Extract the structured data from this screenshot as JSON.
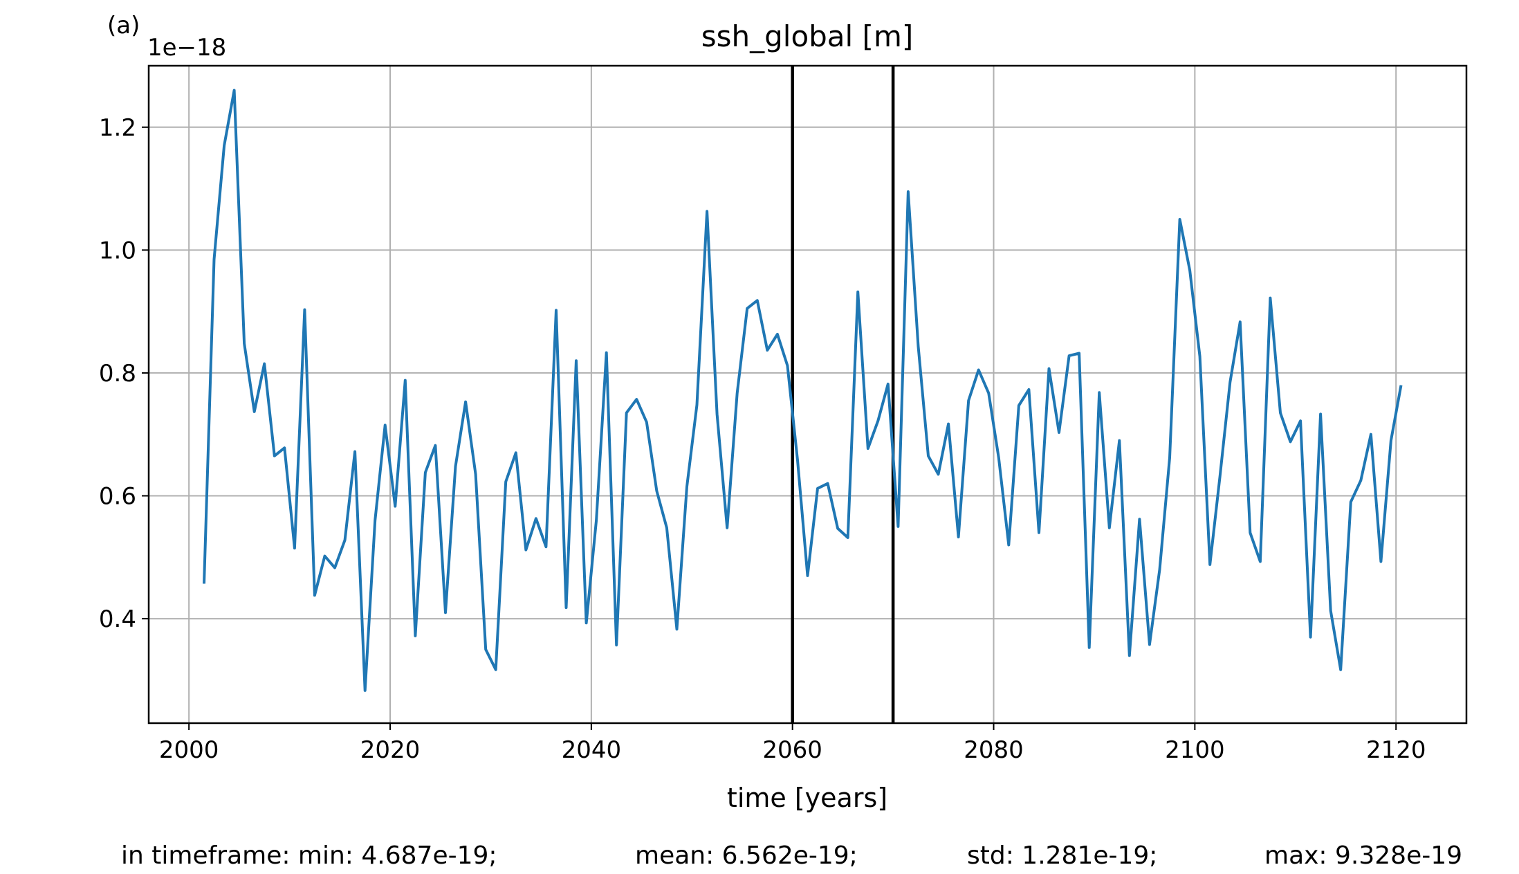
{
  "chart_data": {
    "type": "line",
    "panel_label": "(a)",
    "title": "ssh_global [m]",
    "xlabel": "time [years]",
    "ylabel": "",
    "y_offset_label": "1e−18",
    "y_scale": 1e-18,
    "xlim": [
      1996,
      2127
    ],
    "ylim": [
      0.23,
      1.3
    ],
    "x_ticks": [
      2000,
      2020,
      2040,
      2060,
      2080,
      2100,
      2120
    ],
    "x_tick_labels": [
      "2000",
      "2020",
      "2040",
      "2060",
      "2080",
      "2100",
      "2120"
    ],
    "y_ticks": [
      0.4,
      0.6,
      0.8,
      1.0,
      1.2
    ],
    "y_tick_labels": [
      "0.4",
      "0.6",
      "0.8",
      "1.0",
      "1.2"
    ],
    "grid": true,
    "series_color": "#1f77b4",
    "vertical_lines": [
      2060,
      2070
    ],
    "vertical_line_color": "#000000",
    "series": [
      {
        "x": [
          2001.5,
          2002.5,
          2003.5,
          2004.5,
          2005.5,
          2006.5,
          2007.5,
          2008.5,
          2009.5,
          2010.5,
          2011.5,
          2012.5,
          2013.5,
          2014.5,
          2015.5,
          2016.5,
          2017.5,
          2018.5,
          2019.5,
          2020.5,
          2021.5,
          2022.5,
          2023.5,
          2024.5,
          2025.5,
          2026.5,
          2027.5,
          2028.5,
          2029.5,
          2030.5,
          2031.5,
          2032.5,
          2033.5,
          2034.5,
          2035.5,
          2036.5,
          2037.5,
          2038.5,
          2039.5,
          2040.5,
          2041.5,
          2042.5,
          2043.5,
          2044.5,
          2045.5,
          2046.5,
          2047.5,
          2048.5,
          2049.5,
          2050.5,
          2051.5,
          2052.5,
          2053.5,
          2054.5,
          2055.5,
          2056.5,
          2057.5,
          2058.5,
          2059.5,
          2060.5,
          2061.5,
          2062.5,
          2063.5,
          2064.5,
          2065.5,
          2066.5,
          2067.5,
          2068.5,
          2069.5,
          2070.5,
          2071.5,
          2072.5,
          2073.5,
          2074.5,
          2075.5,
          2076.5,
          2077.5,
          2078.5,
          2079.5,
          2080.5,
          2081.5,
          2082.5,
          2083.5,
          2084.5,
          2085.5,
          2086.5,
          2087.5,
          2088.5,
          2089.5,
          2090.5,
          2091.5,
          2092.5,
          2093.5,
          2094.5,
          2095.5,
          2096.5,
          2097.5,
          2098.5,
          2099.5,
          2100.5,
          2101.5,
          2102.5,
          2103.5,
          2104.5,
          2105.5,
          2106.5,
          2107.5,
          2108.5,
          2109.5,
          2110.5,
          2111.5,
          2112.5,
          2113.5,
          2114.5,
          2115.5,
          2116.5,
          2117.5,
          2118.5,
          2119.5,
          2120.5
        ],
        "y": [
          0.457,
          0.985,
          1.17,
          1.26,
          0.848,
          0.737,
          0.815,
          0.665,
          0.678,
          0.515,
          0.903,
          0.438,
          0.502,
          0.483,
          0.528,
          0.672,
          0.283,
          0.56,
          0.715,
          0.583,
          0.788,
          0.372,
          0.638,
          0.682,
          0.41,
          0.648,
          0.753,
          0.635,
          0.35,
          0.317,
          0.623,
          0.67,
          0.512,
          0.563,
          0.517,
          0.902,
          0.418,
          0.82,
          0.393,
          0.56,
          0.833,
          0.357,
          0.735,
          0.757,
          0.72,
          0.608,
          0.548,
          0.383,
          0.615,
          0.748,
          1.063,
          0.733,
          0.548,
          0.767,
          0.905,
          0.918,
          0.837,
          0.863,
          0.812,
          0.658,
          0.47,
          0.612,
          0.62,
          0.547,
          0.532,
          0.932,
          0.677,
          0.722,
          0.782,
          0.55,
          1.095,
          0.843,
          0.665,
          0.635,
          0.717,
          0.533,
          0.755,
          0.805,
          0.767,
          0.662,
          0.52,
          0.747,
          0.773,
          0.54,
          0.807,
          0.703,
          0.828,
          0.832,
          0.353,
          0.768,
          0.548,
          0.69,
          0.34,
          0.562,
          0.358,
          0.48,
          0.662,
          1.05,
          0.967,
          0.827,
          0.488,
          0.632,
          0.785,
          0.883,
          0.54,
          0.493,
          0.922,
          0.735,
          0.688,
          0.722,
          0.37,
          0.733,
          0.413,
          0.317,
          0.59,
          0.625,
          0.7,
          0.493,
          0.69,
          0.78
        ]
      }
    ],
    "stats": {
      "min": "in timeframe: min: 4.687e-19;",
      "mean": "mean: 6.562e-19;",
      "std": "std: 1.281e-19;",
      "max": "max: 9.328e-19"
    }
  }
}
